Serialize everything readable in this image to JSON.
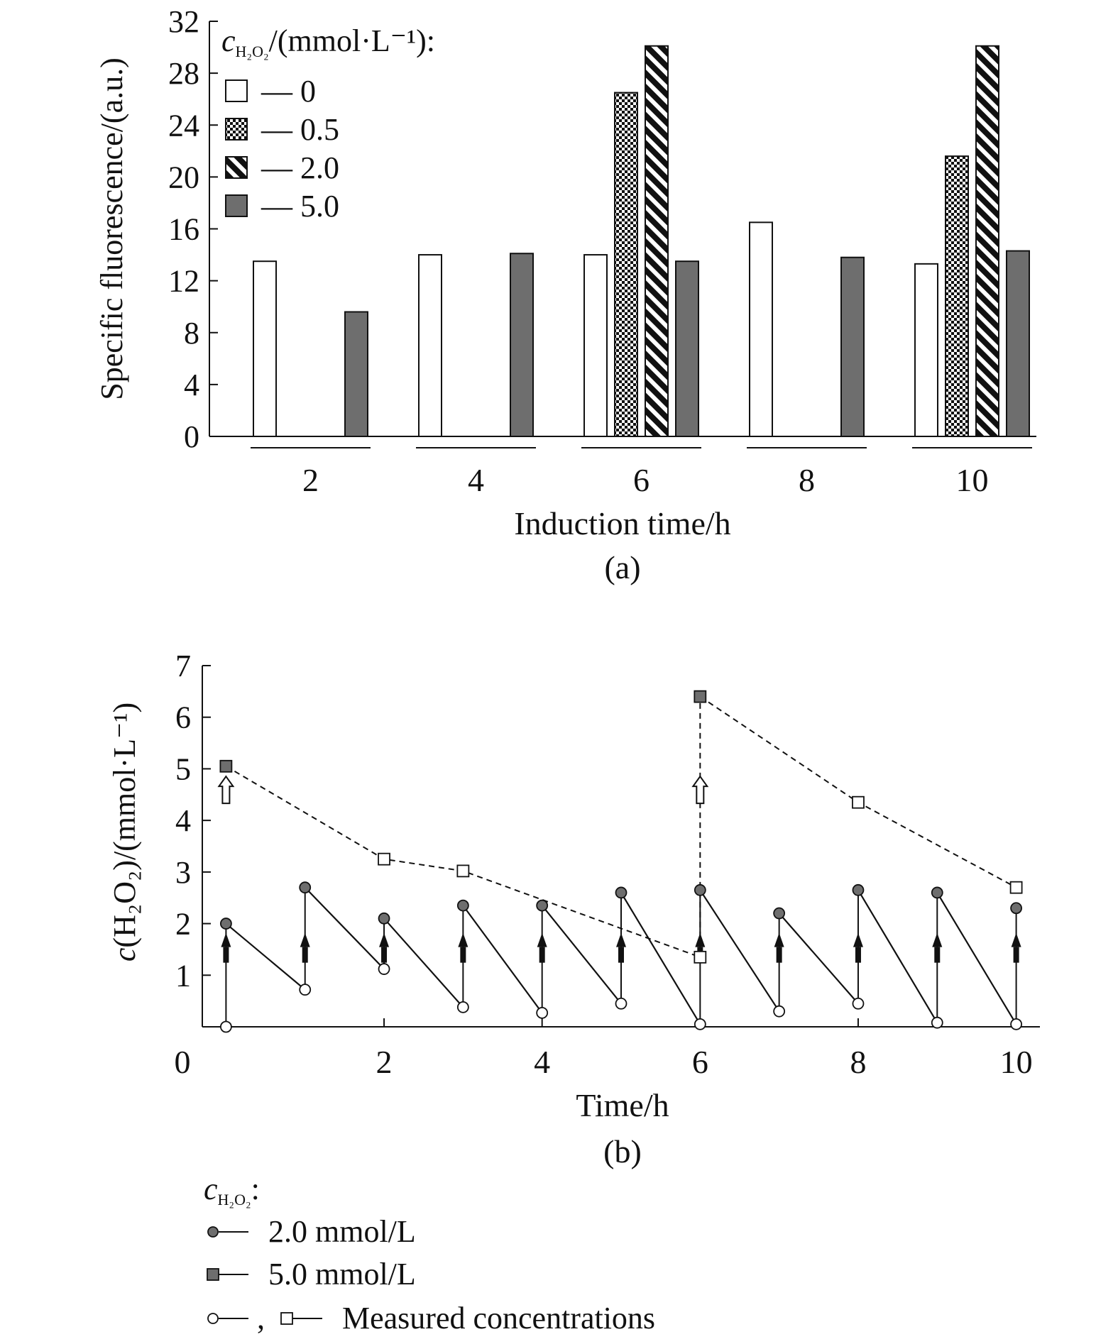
{
  "chart_data": [
    {
      "type": "bar",
      "panel_label": "(a)",
      "xlabel": "Induction time/h",
      "ylabel": "Specific fluorescence/(a.u.)",
      "ylim": [
        0,
        32
      ],
      "yticks": [
        "0",
        "4",
        "8",
        "12",
        "16",
        "20",
        "24",
        "28",
        "32"
      ],
      "categories": [
        "2",
        "4",
        "6",
        "8",
        "10"
      ],
      "legend_title": "c_H2O2/(mmol·L⁻¹):",
      "legend_title_parts": {
        "c": "c",
        "sub": "H₂O₂",
        "rest": "/(mmol·L⁻¹):"
      },
      "legend_position": "top-left",
      "series": [
        {
          "name": "0",
          "pattern": "white",
          "values": [
            13.5,
            14.0,
            14.0,
            16.5,
            13.3
          ]
        },
        {
          "name": "0.5",
          "pattern": "dots",
          "values": [
            null,
            null,
            26.5,
            null,
            21.6
          ]
        },
        {
          "name": "2.0",
          "pattern": "hatch",
          "values": [
            null,
            null,
            30.1,
            null,
            30.1
          ]
        },
        {
          "name": "5.0",
          "pattern": "gray",
          "values": [
            9.6,
            14.1,
            13.5,
            13.8,
            14.3
          ]
        }
      ],
      "legend_dash": "—"
    },
    {
      "type": "line",
      "panel_label": "(b)",
      "xlabel": "Time/h",
      "ylabel": "c(H₂O₂)/(mmol·L⁻¹)",
      "ylabel_parts": {
        "c": "c",
        "rest": "(H₂O₂)/(mmol·L⁻¹)"
      },
      "xlim": [
        0,
        10.6
      ],
      "ylim": [
        0,
        7
      ],
      "xticks": [
        "0",
        "2",
        "4",
        "6",
        "8",
        "10"
      ],
      "yticks": [
        "1",
        "2",
        "3",
        "4",
        "5",
        "6",
        "7"
      ],
      "x_origin_tick": 0.3,
      "series_2mmol": {
        "name": "2.0 mmol/L",
        "segments": [
          {
            "x_start": 0.3,
            "y_start": 2.0,
            "x_end": 1.3,
            "y_end": 0.72
          },
          {
            "x_start": 1.3,
            "y_start": 2.7,
            "x_end": 2.3,
            "y_end": 1.12
          },
          {
            "x_start": 2.3,
            "y_start": 2.1,
            "x_end": 3.3,
            "y_end": 0.38
          },
          {
            "x_start": 3.3,
            "y_start": 2.35,
            "x_end": 4.3,
            "y_end": 0.27
          },
          {
            "x_start": 4.3,
            "y_start": 2.35,
            "x_end": 5.3,
            "y_end": 0.45
          },
          {
            "x_start": 5.3,
            "y_start": 2.6,
            "x_end": 6.3,
            "y_end": 0.05
          },
          {
            "x_start": 6.3,
            "y_start": 2.65,
            "x_end": 7.3,
            "y_end": 0.3
          },
          {
            "x_start": 7.3,
            "y_start": 2.2,
            "x_end": 8.3,
            "y_end": 0.45
          },
          {
            "x_start": 8.3,
            "y_start": 2.65,
            "x_end": 9.3,
            "y_end": 0.08
          },
          {
            "x_start": 9.3,
            "y_start": 2.6,
            "x_end": 10.3,
            "y_end": 0.05
          }
        ],
        "final_point": {
          "x": 10.3,
          "y": 2.3
        },
        "initial_measured": {
          "x": 0.3,
          "y": 0.0
        }
      },
      "series_5mmol": {
        "name": "5.0 mmol/L",
        "doses": [
          {
            "x": 0.3,
            "y": 5.05
          },
          {
            "x": 6.3,
            "y": 6.4
          }
        ],
        "measured": [
          {
            "x": 2.3,
            "y": 3.25
          },
          {
            "x": 3.3,
            "y": 3.02
          },
          {
            "x": 6.3,
            "y": 1.35
          },
          {
            "x": 8.3,
            "y": 4.35
          },
          {
            "x": 10.3,
            "y": 2.7
          }
        ]
      },
      "legend": {
        "title_parts": {
          "c": "c",
          "sub": "H₂O₂",
          "rest": ":"
        },
        "entries": [
          {
            "label": "2.0 mmol/L"
          },
          {
            "label": "5.0 mmol/L"
          },
          {
            "label": "Measured concentrations",
            "separator": ","
          }
        ],
        "position": "below"
      }
    }
  ]
}
